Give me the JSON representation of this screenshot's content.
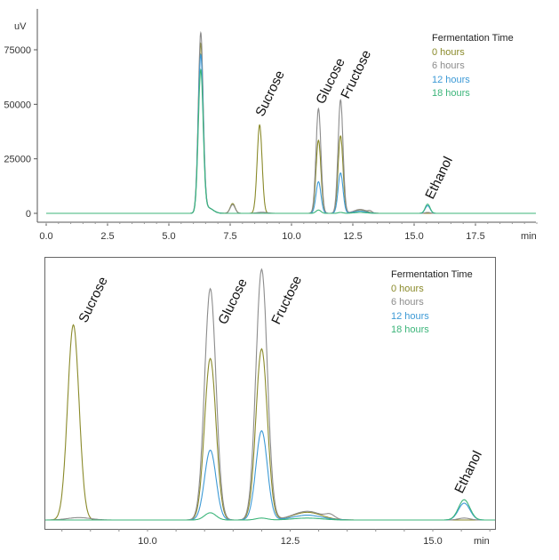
{
  "chart_data": [
    {
      "type": "line",
      "title": "",
      "xlabel": "min",
      "ylabel": "uV",
      "xlim": [
        0,
        20
      ],
      "ylim": [
        -3000,
        85000
      ],
      "x_ticks": [
        "0.0",
        "2.5",
        "5.0",
        "7.5",
        "10.0",
        "12.5",
        "15.0",
        "17.5"
      ],
      "y_ticks": [
        "0",
        "25000",
        "50000",
        "75000"
      ],
      "legend_title": "Fermentation Time",
      "legend_position": "top-right",
      "annotations": [
        "Sucrose",
        "Glucose",
        "Fructose",
        "Ethanol"
      ]
    },
    {
      "type": "line",
      "title": "",
      "xlabel": "min",
      "ylabel": "",
      "xlim": [
        8.2,
        16.1
      ],
      "ylim": [
        -2000,
        55000
      ],
      "x_ticks": [
        "10.0",
        "12.5",
        "15.0"
      ],
      "legend_title": "Fermentation Time",
      "legend_position": "top-right",
      "annotations": [
        "Sucrose",
        "Glucose",
        "Fructose",
        "Ethanol"
      ]
    }
  ],
  "series": [
    {
      "name": "0 hours",
      "color": "#8a8a2a",
      "peaks": [
        {
          "rt": 6.3,
          "h": 77000,
          "w": 0.1
        },
        {
          "rt": 6.6,
          "h": 2500,
          "w": 0.2
        },
        {
          "rt": 7.6,
          "h": 4500,
          "w": 0.1
        },
        {
          "rt": 8.7,
          "h": 40500,
          "w": 0.1
        },
        {
          "rt": 11.1,
          "h": 33500,
          "w": 0.1
        },
        {
          "rt": 12.0,
          "h": 35500,
          "w": 0.1
        },
        {
          "rt": 12.8,
          "h": 1600,
          "w": 0.25
        }
      ]
    },
    {
      "name": "6 hours",
      "color": "#8c8c8c",
      "peaks": [
        {
          "rt": 6.3,
          "h": 82000,
          "w": 0.1
        },
        {
          "rt": 6.6,
          "h": 2500,
          "w": 0.2
        },
        {
          "rt": 7.6,
          "h": 4000,
          "w": 0.1
        },
        {
          "rt": 8.8,
          "h": 500,
          "w": 0.2
        },
        {
          "rt": 11.1,
          "h": 48000,
          "w": 0.1
        },
        {
          "rt": 12.0,
          "h": 52000,
          "w": 0.1
        },
        {
          "rt": 12.8,
          "h": 1800,
          "w": 0.25
        },
        {
          "rt": 13.2,
          "h": 800,
          "w": 0.08
        },
        {
          "rt": 15.55,
          "h": 400,
          "w": 0.1
        }
      ]
    },
    {
      "name": "12 hours",
      "color": "#3d9ad6",
      "peaks": [
        {
          "rt": 6.3,
          "h": 72000,
          "w": 0.1
        },
        {
          "rt": 6.6,
          "h": 2500,
          "w": 0.2
        },
        {
          "rt": 11.1,
          "h": 14500,
          "w": 0.1
        },
        {
          "rt": 12.0,
          "h": 18500,
          "w": 0.1
        },
        {
          "rt": 12.8,
          "h": 1000,
          "w": 0.25
        },
        {
          "rt": 15.55,
          "h": 3500,
          "w": 0.1
        }
      ]
    },
    {
      "name": "18 hours",
      "color": "#3cb57a",
      "peaks": [
        {
          "rt": 6.3,
          "h": 65000,
          "w": 0.1
        },
        {
          "rt": 6.6,
          "h": 2500,
          "w": 0.2
        },
        {
          "rt": 11.1,
          "h": 1500,
          "w": 0.1
        },
        {
          "rt": 12.0,
          "h": 400,
          "w": 0.1
        },
        {
          "rt": 12.8,
          "h": 400,
          "w": 0.25
        },
        {
          "rt": 15.55,
          "h": 4200,
          "w": 0.1
        }
      ]
    }
  ]
}
